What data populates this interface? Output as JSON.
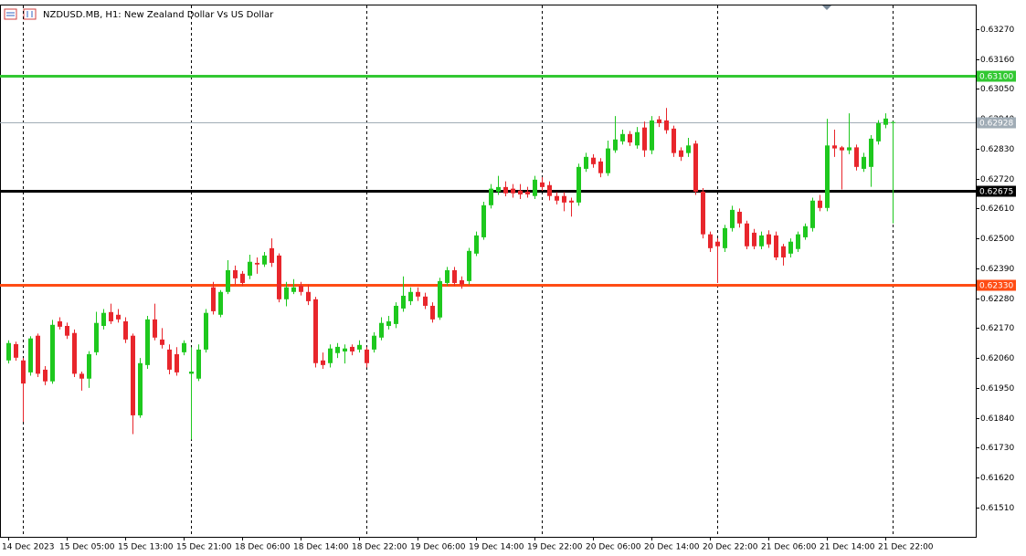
{
  "chart_data": {
    "type": "candlestick",
    "title": "NZDUSD.MB, H1:  New Zealand Dollar Vs US Dollar",
    "up_color": "#1ec81e",
    "down_color": "#e8262c",
    "categories": [
      "14 Dec 2023",
      null,
      null,
      null,
      null,
      null,
      null,
      null,
      "15 Dec 05:00",
      null,
      null,
      null,
      null,
      null,
      null,
      null,
      "15 Dec 13:00",
      null,
      null,
      null,
      null,
      null,
      null,
      null,
      "15 Dec 21:00",
      null,
      null,
      null,
      null,
      null,
      null,
      null,
      "18 Dec 06:00",
      null,
      null,
      null,
      null,
      null,
      null,
      null,
      "18 Dec 14:00",
      null,
      null,
      null,
      null,
      null,
      null,
      null,
      "18 Dec 22:00",
      null,
      null,
      null,
      null,
      null,
      null,
      null,
      "19 Dec 06:00",
      null,
      null,
      null,
      null,
      null,
      null,
      null,
      "19 Dec 14:00",
      null,
      null,
      null,
      null,
      null,
      null,
      null,
      "19 Dec 22:00",
      null,
      null,
      null,
      null,
      null,
      null,
      null,
      "20 Dec 06:00",
      null,
      null,
      null,
      null,
      null,
      null,
      null,
      "20 Dec 14:00",
      null,
      null,
      null,
      null,
      null,
      null,
      null,
      "20 Dec 22:00",
      null,
      null,
      null,
      null,
      null,
      null,
      null,
      "21 Dec 06:00",
      null,
      null,
      null,
      null,
      null,
      null,
      null,
      "21 Dec 14:00",
      null,
      null,
      null,
      null,
      null,
      null,
      null,
      "21 Dec 22:00",
      null
    ],
    "open": [
      0.62051,
      0.62111,
      0.62051,
      0.62007,
      0.62142,
      0.62017,
      0.61974,
      0.62195,
      0.62178,
      0.62152,
      0.62002,
      0.61984,
      0.62081,
      0.62178,
      0.62229,
      0.62219,
      0.62195,
      0.62142,
      0.61849,
      0.62034,
      0.62202,
      0.62128,
      0.62091,
      0.62074,
      0.62081,
      0.62002,
      0.61984,
      0.62091,
      0.6232,
      0.62219,
      0.62303,
      0.62383,
      0.6237,
      0.62363,
      0.6241,
      0.62404,
      0.62464,
      0.62437,
      0.62276,
      0.62303,
      0.62326,
      0.62303,
      0.62276,
      0.62051,
      0.62041,
      0.62078,
      0.62084,
      0.62101,
      0.62091,
      0.62091,
      0.62091,
      0.62135,
      0.62178,
      0.62185,
      0.62242,
      0.62269,
      0.62303,
      0.62286,
      0.62252,
      0.62209,
      0.62336,
      0.62383,
      0.62346,
      0.62343,
      0.62444,
      0.62504,
      0.62622,
      0.62672,
      0.62689,
      0.62683,
      0.62676,
      0.62672,
      0.62656,
      0.62706,
      0.62696,
      0.62656,
      0.62656,
      0.62639,
      0.62632,
      0.62756,
      0.62797,
      0.62783,
      0.6274,
      0.62824,
      0.62857,
      0.62884,
      0.62842,
      0.62908,
      0.62824,
      0.62938,
      0.62934,
      0.62904,
      0.62824,
      0.62814,
      0.62849,
      0.62672,
      0.62515,
      0.62488,
      0.62464,
      0.62538,
      0.62598,
      0.62555,
      0.62521,
      0.62471,
      0.62515,
      0.62511,
      0.62471,
      0.62444,
      0.62461,
      0.62504,
      0.62538,
      0.62639,
      0.62612,
      0.62842,
      0.62835,
      0.62824,
      0.62835,
      0.62756,
      0.62763,
      0.62857,
      0.62918,
      0.62928
    ],
    "high": [
      0.62125,
      0.6212,
      0.6206,
      0.6214,
      0.6215,
      0.6203,
      0.622,
      0.6221,
      0.6219,
      0.62165,
      0.6201,
      0.62085,
      0.6223,
      0.6224,
      0.6226,
      0.6224,
      0.6221,
      0.6215,
      0.6206,
      0.62215,
      0.6226,
      0.6217,
      0.6211,
      0.621,
      0.62125,
      0.621,
      0.6211,
      0.6224,
      0.6234,
      0.6231,
      0.6242,
      0.624,
      0.6238,
      0.6244,
      0.6243,
      0.6245,
      0.625,
      0.62445,
      0.6234,
      0.6235,
      0.6234,
      0.6233,
      0.62285,
      0.6208,
      0.6211,
      0.62115,
      0.6211,
      0.6211,
      0.62125,
      0.621,
      0.62155,
      0.6221,
      0.62215,
      0.62265,
      0.6236,
      0.6232,
      0.6232,
      0.623,
      0.62265,
      0.62355,
      0.62395,
      0.62395,
      0.6236,
      0.62465,
      0.62525,
      0.62635,
      0.627,
      0.6273,
      0.6271,
      0.627,
      0.627,
      0.6269,
      0.6273,
      0.62725,
      0.6271,
      0.6267,
      0.6267,
      0.6265,
      0.62775,
      0.62815,
      0.6281,
      0.62795,
      0.6286,
      0.6295,
      0.629,
      0.62895,
      0.6291,
      0.6293,
      0.6295,
      0.6295,
      0.6298,
      0.62915,
      0.62835,
      0.6287,
      0.6286,
      0.62685,
      0.62525,
      0.625,
      0.6255,
      0.6262,
      0.6261,
      0.62565,
      0.62535,
      0.62525,
      0.6253,
      0.62525,
      0.6248,
      0.625,
      0.62525,
      0.62555,
      0.6265,
      0.6266,
      0.6294,
      0.629,
      0.6284,
      0.6296,
      0.62845,
      0.62815,
      0.6288,
      0.62935,
      0.6296,
      0.62931
    ],
    "low": [
      0.6204,
      0.6205,
      0.61825,
      0.61995,
      0.6199,
      0.6196,
      0.61965,
      0.62165,
      0.6213,
      0.6199,
      0.6194,
      0.6195,
      0.6207,
      0.62165,
      0.62185,
      0.6219,
      0.62115,
      0.6178,
      0.6184,
      0.6202,
      0.62125,
      0.62095,
      0.62,
      0.61995,
      0.6207,
      0.6176,
      0.61975,
      0.6208,
      0.6222,
      0.6221,
      0.62295,
      0.6233,
      0.62325,
      0.6235,
      0.6237,
      0.62395,
      0.62395,
      0.62265,
      0.6225,
      0.62295,
      0.6229,
      0.62255,
      0.62025,
      0.6202,
      0.62025,
      0.6206,
      0.6204,
      0.6207,
      0.6208,
      0.62025,
      0.6208,
      0.62125,
      0.62165,
      0.6217,
      0.6223,
      0.62255,
      0.6227,
      0.6224,
      0.6219,
      0.622,
      0.62325,
      0.62325,
      0.62315,
      0.6233,
      0.62435,
      0.62495,
      0.6261,
      0.6266,
      0.62655,
      0.6265,
      0.62645,
      0.6265,
      0.62645,
      0.62675,
      0.6264,
      0.62625,
      0.626,
      0.6258,
      0.6262,
      0.62745,
      0.6276,
      0.62725,
      0.6273,
      0.62815,
      0.62845,
      0.6284,
      0.6283,
      0.628,
      0.6281,
      0.6291,
      0.62885,
      0.628,
      0.62785,
      0.628,
      0.6266,
      0.625,
      0.6245,
      0.62336,
      0.6245,
      0.62525,
      0.6254,
      0.6246,
      0.6246,
      0.6246,
      0.62465,
      0.6242,
      0.624,
      0.6243,
      0.6245,
      0.62495,
      0.62525,
      0.626,
      0.626,
      0.628,
      0.6268,
      0.6281,
      0.6275,
      0.62745,
      0.6269,
      0.62845,
      0.62905,
      0.62555
    ],
    "close": [
      0.62115,
      0.62061,
      0.61966,
      0.62132,
      0.62002,
      0.61974,
      0.62182,
      0.62175,
      0.62142,
      0.62002,
      0.61984,
      0.62074,
      0.62189,
      0.62226,
      0.62195,
      0.62202,
      0.62128,
      0.61849,
      0.62041,
      0.62202,
      0.62135,
      0.62108,
      0.62017,
      0.62007,
      0.62115,
      0.6201,
      0.62091,
      0.62226,
      0.62232,
      0.62303,
      0.62383,
      0.62353,
      0.62336,
      0.62414,
      0.62404,
      0.62437,
      0.6241,
      0.62276,
      0.6232,
      0.6232,
      0.62303,
      0.62269,
      0.62041,
      0.62034,
      0.62095,
      0.62101,
      0.62095,
      0.62084,
      0.62108,
      0.62041,
      0.62142,
      0.62189,
      0.62195,
      0.62252,
      0.62289,
      0.62303,
      0.62286,
      0.62252,
      0.62202,
      0.62343,
      0.62383,
      0.62336,
      0.6233,
      0.62454,
      0.62511,
      0.62622,
      0.62683,
      0.62689,
      0.62666,
      0.62666,
      0.62662,
      0.62662,
      0.62716,
      0.62689,
      0.62656,
      0.62639,
      0.62632,
      0.62632,
      0.62763,
      0.628,
      0.62773,
      0.6274,
      0.62831,
      0.62864,
      0.62884,
      0.62853,
      0.62891,
      0.62824,
      0.62934,
      0.62924,
      0.62898,
      0.62814,
      0.628,
      0.62842,
      0.62672,
      0.62515,
      0.62464,
      0.62471,
      0.62538,
      0.62605,
      0.62555,
      0.62471,
      0.62471,
      0.62511,
      0.62478,
      0.6243,
      0.6243,
      0.62488,
      0.62515,
      0.62545,
      0.62639,
      0.62612,
      0.62842,
      0.62831,
      0.62824,
      0.62835,
      0.62763,
      0.628,
      0.62867,
      0.62924,
      0.62941,
      0.62928
    ],
    "ylim": [
      0.61402,
      0.63357
    ],
    "yticks": [
      {
        "value": 0.6327,
        "label": "0.63270"
      },
      {
        "value": 0.6316,
        "label": "0.63160"
      },
      {
        "value": 0.6305,
        "label": "0.63050"
      },
      {
        "value": 0.6294,
        "label": "0.62940"
      },
      {
        "value": 0.6283,
        "label": "0.62830"
      },
      {
        "value": 0.6272,
        "label": "0.62720"
      },
      {
        "value": 0.6261,
        "label": "0.62610"
      },
      {
        "value": 0.625,
        "label": "0.62500"
      },
      {
        "value": 0.6239,
        "label": "0.62390"
      },
      {
        "value": 0.6228,
        "label": "0.62280"
      },
      {
        "value": 0.6217,
        "label": "0.62170"
      },
      {
        "value": 0.6206,
        "label": "0.62060"
      },
      {
        "value": 0.6195,
        "label": "0.61950"
      },
      {
        "value": 0.6184,
        "label": "0.61840"
      },
      {
        "value": 0.6173,
        "label": "0.61730"
      },
      {
        "value": 0.6162,
        "label": "0.61620"
      },
      {
        "value": 0.6151,
        "label": "0.61510"
      }
    ],
    "levels": [
      {
        "value": 0.631,
        "label": "0.63100",
        "color": "#32c832"
      },
      {
        "value": 0.62675,
        "color": "#000000"
      },
      {
        "value": 0.6233,
        "label": "0.62330",
        "color": "#ff4c14"
      }
    ],
    "bid": {
      "value": 0.62928,
      "color": "#a0acb6"
    }
  }
}
